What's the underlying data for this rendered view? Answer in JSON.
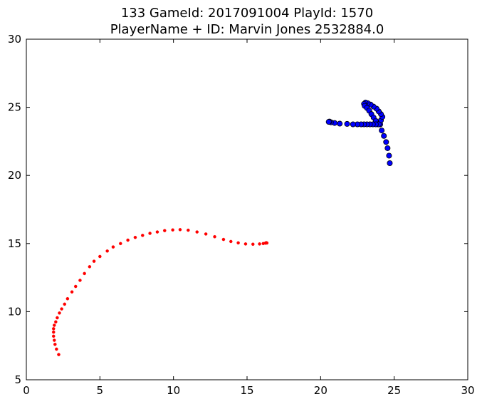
{
  "chart_data": {
    "type": "scatter",
    "title": "133 GameId: 2017091004 PlayId: 1570",
    "subtitle": "PlayerName + ID: Marvin Jones 2532884.0",
    "xlim": [
      0,
      30
    ],
    "ylim": [
      5,
      30
    ],
    "x_ticks": [
      "0",
      "5",
      "10",
      "15",
      "20",
      "25",
      "30"
    ],
    "y_ticks": [
      "5",
      "10",
      "15",
      "20",
      "25",
      "30"
    ],
    "grid": false,
    "series": [
      {
        "color": "#ff0000",
        "marker": "small-dot",
        "points": [
          [
            2.2,
            6.85
          ],
          [
            2.05,
            7.25
          ],
          [
            1.95,
            7.6
          ],
          [
            1.9,
            7.9
          ],
          [
            1.85,
            8.2
          ],
          [
            1.85,
            8.5
          ],
          [
            1.85,
            8.75
          ],
          [
            1.9,
            9.0
          ],
          [
            2.0,
            9.25
          ],
          [
            2.1,
            9.55
          ],
          [
            2.25,
            9.9
          ],
          [
            2.4,
            10.2
          ],
          [
            2.6,
            10.55
          ],
          [
            2.8,
            10.95
          ],
          [
            3.1,
            11.45
          ],
          [
            3.35,
            11.85
          ],
          [
            3.65,
            12.3
          ],
          [
            3.95,
            12.8
          ],
          [
            4.3,
            13.3
          ],
          [
            4.6,
            13.7
          ],
          [
            5.0,
            14.05
          ],
          [
            5.5,
            14.45
          ],
          [
            5.9,
            14.75
          ],
          [
            6.4,
            15.0
          ],
          [
            6.9,
            15.25
          ],
          [
            7.4,
            15.45
          ],
          [
            7.9,
            15.6
          ],
          [
            8.4,
            15.75
          ],
          [
            8.9,
            15.85
          ],
          [
            9.4,
            15.95
          ],
          [
            9.95,
            16.0
          ],
          [
            10.45,
            16.02
          ],
          [
            11.0,
            15.98
          ],
          [
            11.6,
            15.85
          ],
          [
            12.2,
            15.7
          ],
          [
            12.8,
            15.5
          ],
          [
            13.4,
            15.3
          ],
          [
            13.9,
            15.15
          ],
          [
            14.4,
            15.05
          ],
          [
            14.9,
            14.97
          ],
          [
            15.4,
            14.95
          ],
          [
            15.85,
            14.97
          ],
          [
            16.1,
            15.0
          ],
          [
            16.25,
            15.03
          ],
          [
            16.3,
            15.06
          ],
          [
            16.35,
            15.04
          ]
        ]
      },
      {
        "color": "#0000ff",
        "marker": "circle",
        "points": [
          [
            24.7,
            20.9
          ],
          [
            24.65,
            21.45
          ],
          [
            24.55,
            22.0
          ],
          [
            24.45,
            22.45
          ],
          [
            24.3,
            22.9
          ],
          [
            24.15,
            23.3
          ],
          [
            24.05,
            23.75
          ],
          [
            24.1,
            24.05
          ],
          [
            24.2,
            24.3
          ],
          [
            24.1,
            24.5
          ],
          [
            23.95,
            24.7
          ],
          [
            23.8,
            24.9
          ],
          [
            23.6,
            25.05
          ],
          [
            23.4,
            25.2
          ],
          [
            23.2,
            25.3
          ],
          [
            23.05,
            25.35
          ],
          [
            22.95,
            25.25
          ],
          [
            23.0,
            25.1
          ],
          [
            23.15,
            24.95
          ],
          [
            23.3,
            24.75
          ],
          [
            23.45,
            24.5
          ],
          [
            23.6,
            24.25
          ],
          [
            23.75,
            24.0
          ],
          [
            23.9,
            23.75
          ],
          [
            23.95,
            23.75
          ],
          [
            23.75,
            23.75
          ],
          [
            23.55,
            23.75
          ],
          [
            23.35,
            23.75
          ],
          [
            23.15,
            23.75
          ],
          [
            22.95,
            23.75
          ],
          [
            22.75,
            23.75
          ],
          [
            22.5,
            23.75
          ],
          [
            22.2,
            23.75
          ],
          [
            21.8,
            23.78
          ],
          [
            21.3,
            23.8
          ],
          [
            20.95,
            23.85
          ],
          [
            20.7,
            23.9
          ],
          [
            20.6,
            23.95
          ],
          [
            20.55,
            23.93
          ]
        ]
      }
    ]
  }
}
